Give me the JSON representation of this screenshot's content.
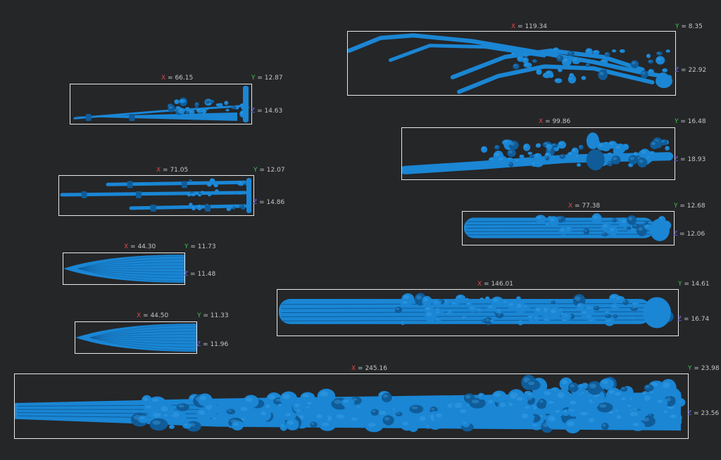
{
  "colors": {
    "background": "#252628",
    "mesh": "#1a86d4",
    "mesh_dark": "#0f5c99",
    "mesh_light": "#49a9ee",
    "box_border": "#e8e8e8",
    "x_axis": "#e04848",
    "y_axis": "#3ec44a",
    "z_axis": "#6a6df2",
    "label_text": "#c6c6c6"
  },
  "axis_letters": {
    "x": "X",
    "y": "Y",
    "z": "Z"
  },
  "items": [
    {
      "id": "1",
      "x": "= 66.15",
      "y": "= 12.87",
      "z": "= 14.63",
      "shape": "spike-single"
    },
    {
      "id": "2",
      "x": "= 71.05",
      "y": "= 12.07",
      "z": "= 14.86",
      "shape": "spike-triple"
    },
    {
      "id": "3",
      "x": "= 44.30",
      "y": "= 11.73",
      "z": "= 11.48",
      "shape": "cone"
    },
    {
      "id": "4",
      "x": "= 44.50",
      "y": "= 11.33",
      "z": "= 11.96",
      "shape": "cone"
    },
    {
      "id": "5",
      "x": "= 119.34",
      "y": "= 8.35",
      "z": "= 22.92",
      "shape": "claws"
    },
    {
      "id": "6",
      "x": "= 99.86",
      "y": "= 16.48",
      "z": "= 18.93",
      "shape": "lumpy-rod"
    },
    {
      "id": "7",
      "x": "= 77.38",
      "y": "= 12.68",
      "z": "= 12.06",
      "shape": "bundle"
    },
    {
      "id": "8",
      "x": "= 146.01",
      "y": "= 14.61",
      "z": "= 16.74",
      "shape": "bundle-long"
    },
    {
      "id": "9",
      "x": "= 245.16",
      "y": "= 23.98",
      "z": "= 23.56",
      "shape": "huge-rod"
    }
  ]
}
